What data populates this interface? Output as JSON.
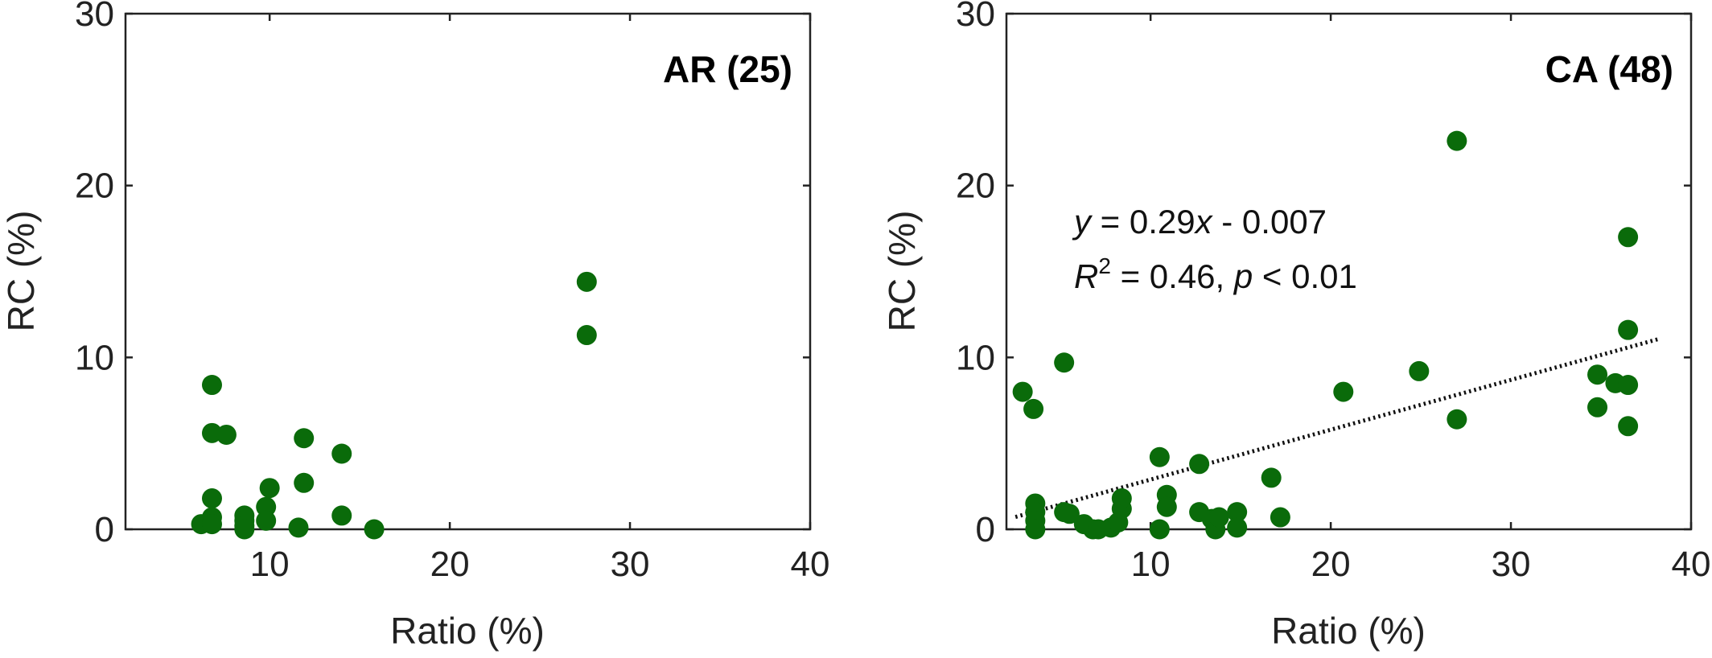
{
  "colors": {
    "marker": "#0a6b0a",
    "axis": "#222222",
    "fit": "#111111"
  },
  "chart_data": [
    {
      "type": "scatter",
      "title": "AR (25)",
      "xlabel": "Ratio (%)",
      "ylabel": "RC (%)",
      "xlim": [
        2,
        40
      ],
      "ylim": [
        0,
        30
      ],
      "xticks": [
        "10",
        "20",
        "30",
        "40"
      ],
      "yticks": [
        "0",
        "10",
        "20",
        "30"
      ],
      "series": [
        {
          "points": [
            [
              6.2,
              0.3
            ],
            [
              6.8,
              8.4
            ],
            [
              6.8,
              5.6
            ],
            [
              6.8,
              1.8
            ],
            [
              6.8,
              0.7
            ],
            [
              6.8,
              0.3
            ],
            [
              7.6,
              5.5
            ],
            [
              8.6,
              0.8
            ],
            [
              8.6,
              0.5
            ],
            [
              8.6,
              0.2
            ],
            [
              8.6,
              0.0
            ],
            [
              9.8,
              1.3
            ],
            [
              9.8,
              0.5
            ],
            [
              10.0,
              2.4
            ],
            [
              11.6,
              0.1
            ],
            [
              11.9,
              5.3
            ],
            [
              11.9,
              2.7
            ],
            [
              14.0,
              4.4
            ],
            [
              14.0,
              0.8
            ],
            [
              15.8,
              0.0
            ],
            [
              27.6,
              14.4
            ],
            [
              27.6,
              11.3
            ]
          ]
        }
      ]
    },
    {
      "type": "scatter",
      "title": "CA (48)",
      "xlabel": "Ratio (%)",
      "ylabel": "RC (%)",
      "xlim": [
        2,
        40
      ],
      "ylim": [
        0,
        30
      ],
      "xticks": [
        "10",
        "20",
        "30",
        "40"
      ],
      "yticks": [
        "0",
        "10",
        "20",
        "30"
      ],
      "annotation": {
        "line1": {
          "y": "y",
          "mid": " = 0.29",
          "x": "x",
          "rest": " - 0.007"
        },
        "line2": {
          "r": "R",
          "sup": "2",
          "mid": " = 0.46, ",
          "p": "p",
          "rest": " < 0.01"
        }
      },
      "fit": {
        "slope": 0.29,
        "intercept": -0.007,
        "x_range": [
          2.5,
          38.2
        ]
      },
      "series": [
        {
          "points": [
            [
              2.9,
              8.0
            ],
            [
              3.5,
              7.0
            ],
            [
              3.6,
              1.5
            ],
            [
              3.6,
              1.0
            ],
            [
              3.6,
              0.5
            ],
            [
              3.6,
              0.0
            ],
            [
              5.2,
              9.7
            ],
            [
              5.2,
              1.0
            ],
            [
              5.5,
              0.9
            ],
            [
              6.3,
              0.3
            ],
            [
              6.8,
              0.0
            ],
            [
              7.1,
              0.0
            ],
            [
              7.8,
              0.1
            ],
            [
              8.2,
              0.4
            ],
            [
              8.4,
              1.2
            ],
            [
              8.4,
              1.8
            ],
            [
              10.5,
              4.2
            ],
            [
              10.5,
              0.0
            ],
            [
              10.9,
              2.0
            ],
            [
              10.9,
              1.3
            ],
            [
              12.7,
              3.8
            ],
            [
              12.7,
              1.0
            ],
            [
              13.4,
              0.6
            ],
            [
              13.6,
              0.0
            ],
            [
              13.8,
              0.7
            ],
            [
              14.8,
              1.0
            ],
            [
              14.8,
              0.1
            ],
            [
              16.7,
              3.0
            ],
            [
              17.2,
              0.7
            ],
            [
              20.7,
              8.0
            ],
            [
              24.9,
              9.2
            ],
            [
              27.0,
              6.4
            ],
            [
              27.0,
              22.6
            ],
            [
              34.8,
              9.0
            ],
            [
              34.8,
              7.1
            ],
            [
              35.8,
              8.5
            ],
            [
              36.5,
              8.4
            ],
            [
              36.5,
              6.0
            ],
            [
              36.5,
              11.6
            ],
            [
              36.5,
              17.0
            ]
          ]
        }
      ]
    }
  ]
}
